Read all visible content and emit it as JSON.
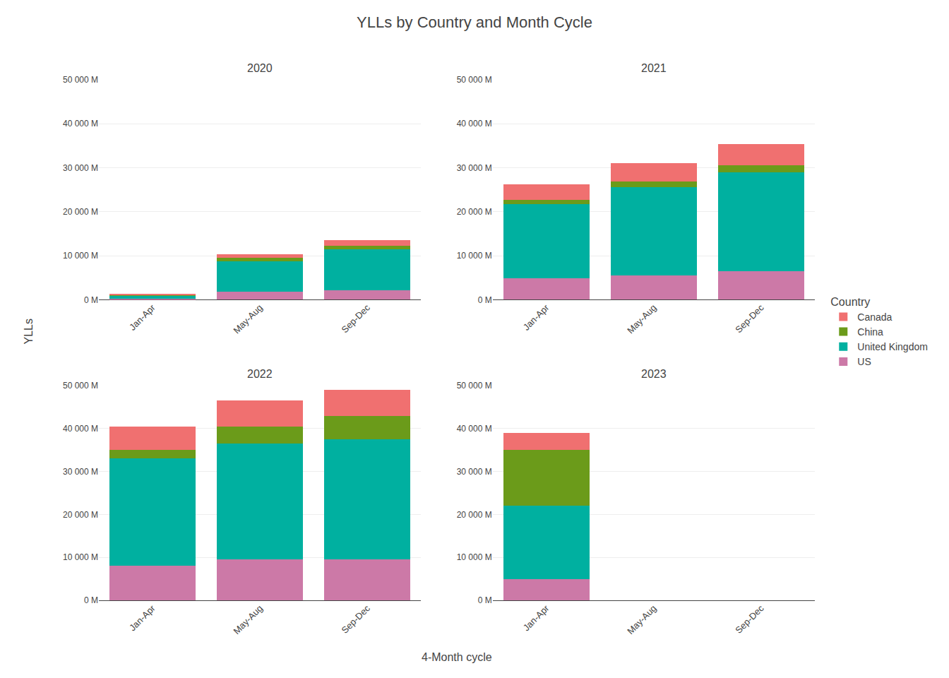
{
  "title": "YLLs by Country and Month Cycle",
  "xlabel": "4-Month cycle",
  "ylabel": "YLLs",
  "legend_title": "Country",
  "legend": "right",
  "chart_data": [
    {
      "type": "bar",
      "title": "2020",
      "stacked": true,
      "grid": true,
      "categories": [
        "Jan-Apr",
        "May-Aug",
        "Sep-Dec"
      ],
      "series": [
        {
          "name": "US",
          "color": "#CC79A7",
          "values": [
            200,
            1800,
            2200
          ]
        },
        {
          "name": "United Kingdom",
          "color": "#00B0A0",
          "values": [
            700,
            7000,
            9200
          ]
        },
        {
          "name": "China",
          "color": "#6B9B1A",
          "values": [
            200,
            700,
            900
          ]
        },
        {
          "name": "Canada",
          "color": "#F07070",
          "values": [
            150,
            900,
            1200
          ]
        }
      ],
      "ylim": [
        0,
        50000
      ],
      "yticks": [
        {
          "value": 0,
          "label": "0 M"
        },
        {
          "value": 10000,
          "label": "10 000 M"
        },
        {
          "value": 20000,
          "label": "20 000 M"
        },
        {
          "value": 30000,
          "label": "30 000 M"
        },
        {
          "value": 40000,
          "label": "40 000 M"
        },
        {
          "value": 50000,
          "label": "50 000 M"
        }
      ]
    },
    {
      "type": "bar",
      "title": "2021",
      "stacked": true,
      "grid": true,
      "categories": [
        "Jan-Apr",
        "May-Aug",
        "Sep-Dec"
      ],
      "series": [
        {
          "name": "US",
          "color": "#CC79A7",
          "values": [
            4800,
            5500,
            6500
          ]
        },
        {
          "name": "United Kingdom",
          "color": "#00B0A0",
          "values": [
            17000,
            20000,
            22500
          ]
        },
        {
          "name": "China",
          "color": "#6B9B1A",
          "values": [
            900,
            1300,
            1500
          ]
        },
        {
          "name": "Canada",
          "color": "#F07070",
          "values": [
            3500,
            4200,
            4800
          ]
        }
      ],
      "ylim": [
        0,
        50000
      ],
      "yticks": [
        {
          "value": 0,
          "label": "0 M"
        },
        {
          "value": 10000,
          "label": "10 000 M"
        },
        {
          "value": 20000,
          "label": "20 000 M"
        },
        {
          "value": 30000,
          "label": "30 000 M"
        },
        {
          "value": 40000,
          "label": "40 000 M"
        },
        {
          "value": 50000,
          "label": "50 000 M"
        }
      ]
    },
    {
      "type": "bar",
      "title": "2022",
      "stacked": true,
      "grid": true,
      "categories": [
        "Jan-Apr",
        "May-Aug",
        "Sep-Dec"
      ],
      "series": [
        {
          "name": "US",
          "color": "#CC79A7",
          "values": [
            8000,
            9500,
            9500
          ]
        },
        {
          "name": "United Kingdom",
          "color": "#00B0A0",
          "values": [
            25000,
            27000,
            28000
          ]
        },
        {
          "name": "China",
          "color": "#6B9B1A",
          "values": [
            2000,
            4000,
            5500
          ]
        },
        {
          "name": "Canada",
          "color": "#F07070",
          "values": [
            5500,
            6000,
            6000
          ]
        }
      ],
      "ylim": [
        0,
        50000
      ],
      "yticks": [
        {
          "value": 0,
          "label": "0 M"
        },
        {
          "value": 10000,
          "label": "10 000 M"
        },
        {
          "value": 20000,
          "label": "20 000 M"
        },
        {
          "value": 30000,
          "label": "30 000 M"
        },
        {
          "value": 40000,
          "label": "40 000 M"
        },
        {
          "value": 50000,
          "label": "50 000 M"
        }
      ]
    },
    {
      "type": "bar",
      "title": "2023",
      "stacked": true,
      "grid": true,
      "categories": [
        "Jan-Apr",
        "May-Aug",
        "Sep-Dec"
      ],
      "series": [
        {
          "name": "US",
          "color": "#CC79A7",
          "values": [
            5000,
            0,
            0
          ]
        },
        {
          "name": "United Kingdom",
          "color": "#00B0A0",
          "values": [
            17000,
            0,
            0
          ]
        },
        {
          "name": "China",
          "color": "#6B9B1A",
          "values": [
            13000,
            0,
            0
          ]
        },
        {
          "name": "Canada",
          "color": "#F07070",
          "values": [
            4000,
            0,
            0
          ]
        }
      ],
      "ylim": [
        0,
        50000
      ],
      "yticks": [
        {
          "value": 0,
          "label": "0 M"
        },
        {
          "value": 10000,
          "label": "10 000 M"
        },
        {
          "value": 20000,
          "label": "20 000 M"
        },
        {
          "value": 30000,
          "label": "30 000 M"
        },
        {
          "value": 40000,
          "label": "40 000 M"
        },
        {
          "value": 50000,
          "label": "50 000 M"
        }
      ]
    }
  ]
}
